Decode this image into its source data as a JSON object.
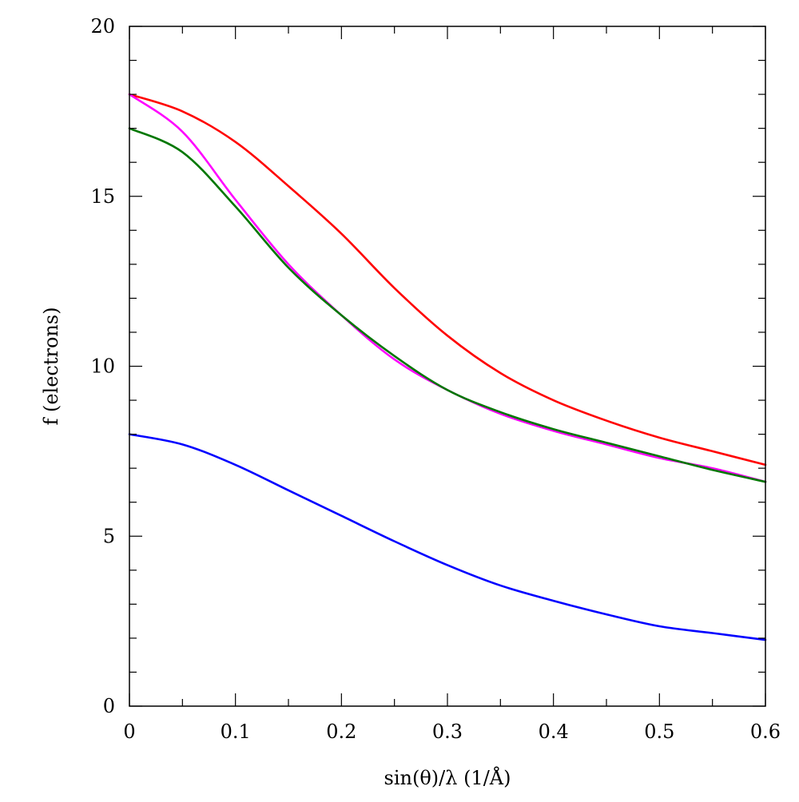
{
  "chart_data": {
    "type": "line",
    "title": "",
    "xlabel": "sin(θ)/λ (1/Å)",
    "ylabel": "f (electrons)",
    "xlim": [
      0,
      0.6
    ],
    "ylim": [
      0,
      20
    ],
    "grid": false,
    "legend": "none",
    "x_ticks": [
      0,
      0.1,
      0.2,
      0.3,
      0.4,
      0.5,
      0.6
    ],
    "x_tick_labels": [
      "0",
      "0.1",
      "0.2",
      "0.3",
      "0.4",
      "0.5",
      "0.6"
    ],
    "x_minor_ticks": [
      0.05,
      0.15,
      0.25,
      0.35,
      0.45,
      0.55
    ],
    "y_ticks": [
      0,
      5,
      10,
      15,
      20
    ],
    "y_tick_labels": [
      "0",
      "5",
      "10",
      "15",
      "20"
    ],
    "y_minor_ticks": [
      1,
      2,
      3,
      4,
      6,
      7,
      8,
      9,
      11,
      12,
      13,
      14,
      16,
      17,
      18,
      19
    ],
    "x": [
      0,
      0.05,
      0.1,
      0.15,
      0.2,
      0.25,
      0.3,
      0.35,
      0.4,
      0.45,
      0.5,
      0.55,
      0.6
    ],
    "series": [
      {
        "color": "#ff0000",
        "values": [
          18.0,
          17.5,
          16.6,
          15.3,
          13.9,
          12.3,
          10.9,
          9.8,
          9.0,
          8.4,
          7.9,
          7.5,
          7.1
        ]
      },
      {
        "color": "#ff00ff",
        "values": [
          18.0,
          16.9,
          14.9,
          13.0,
          11.5,
          10.2,
          9.3,
          8.6,
          8.1,
          7.7,
          7.3,
          7.0,
          6.6
        ]
      },
      {
        "color": "#007700",
        "values": [
          17.0,
          16.3,
          14.7,
          12.9,
          11.5,
          10.3,
          9.3,
          8.65,
          8.15,
          7.75,
          7.35,
          6.95,
          6.6
        ]
      },
      {
        "color": "#0000ff",
        "values": [
          8.0,
          7.7,
          7.1,
          6.35,
          5.6,
          4.85,
          4.15,
          3.55,
          3.1,
          2.7,
          2.35,
          2.15,
          1.95
        ]
      }
    ]
  }
}
